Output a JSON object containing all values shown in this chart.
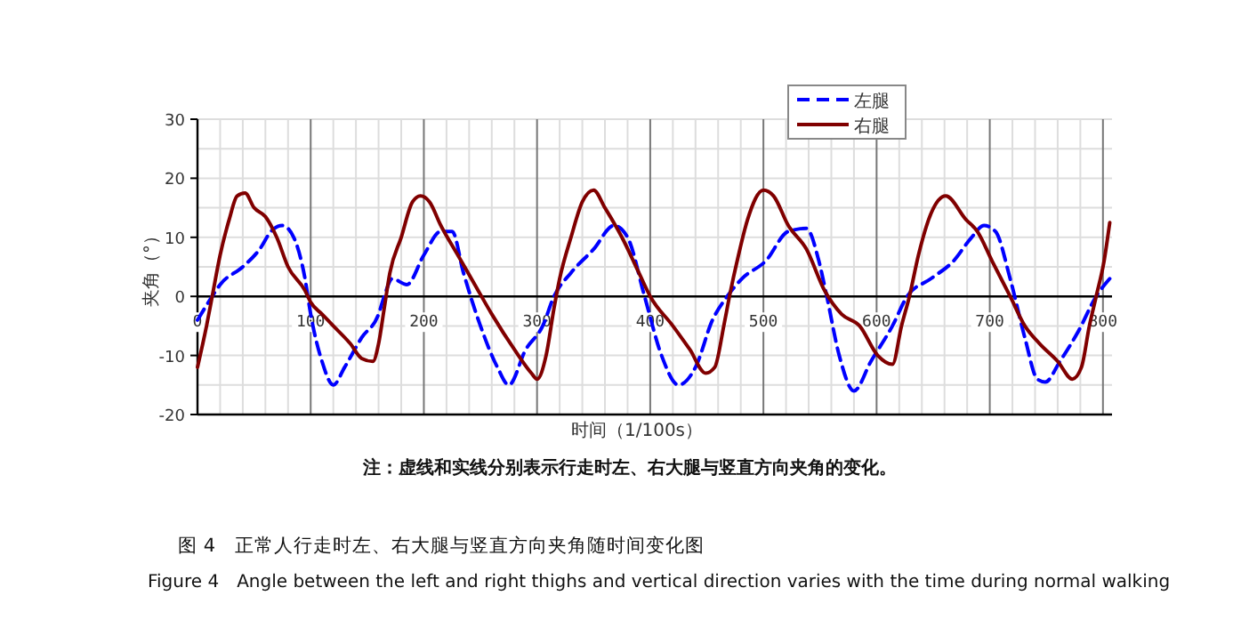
{
  "chart_data": {
    "type": "line",
    "xlabel": "时间（1/100s）",
    "ylabel": "夹角（°）",
    "annotations": [
      "注：虚线和实线分别表示行走时左、右大腿与竖直方向夹角的变化。",
      "图 4　正常人行走时左、右大腿与竖直方向夹角随时间变化图",
      "Figure 4　Angle between the left and right thighs and vertical direction varies with the time during normal walking"
    ],
    "xlim": [
      0,
      808
    ],
    "ylim": [
      -20,
      30
    ],
    "xticks": [
      0,
      {
        "value": 20,
        "label": null
      },
      {
        "value": 40,
        "label": null
      },
      {
        "value": 60,
        "label": null
      },
      {
        "value": 80,
        "label": null
      },
      100,
      {
        "value": 120,
        "label": null
      },
      {
        "value": 140,
        "label": null
      },
      {
        "value": 160,
        "label": null
      },
      {
        "value": 180,
        "label": null
      },
      200,
      {
        "value": 220,
        "label": null
      },
      {
        "value": 240,
        "label": null
      },
      {
        "value": 260,
        "label": null
      },
      {
        "value": 280,
        "label": null
      },
      300,
      {
        "value": 320,
        "label": null
      },
      {
        "value": 340,
        "label": null
      },
      {
        "value": 360,
        "label": null
      },
      {
        "value": 380,
        "label": null
      },
      400,
      {
        "value": 420,
        "label": null
      },
      {
        "value": 440,
        "label": null
      },
      {
        "value": 460,
        "label": null
      },
      {
        "value": 480,
        "label": null
      },
      500,
      {
        "value": 520,
        "label": null
      },
      {
        "value": 540,
        "label": null
      },
      {
        "value": 560,
        "label": null
      },
      {
        "value": 580,
        "label": null
      },
      600,
      {
        "value": 620,
        "label": null
      },
      {
        "value": 640,
        "label": null
      },
      {
        "value": 660,
        "label": null
      },
      {
        "value": 680,
        "label": null
      },
      700,
      {
        "value": 720,
        "label": null
      },
      {
        "value": 740,
        "label": null
      },
      {
        "value": 760,
        "label": null
      },
      {
        "value": 780,
        "label": null
      },
      800
    ],
    "yticks": [
      -20,
      {
        "value": -15,
        "label": null
      },
      -10,
      {
        "value": -5,
        "label": null
      },
      0,
      {
        "value": 5,
        "label": null
      },
      10,
      {
        "value": 15,
        "label": null
      },
      20,
      {
        "value": 25,
        "label": null
      },
      30
    ],
    "grid": true,
    "legend": "top right",
    "series": [
      {
        "name": "左腿",
        "color": "#0000ff",
        "line_style": "dashed",
        "x": [
          0,
          13,
          20,
          40,
          55,
          65,
          75,
          85,
          95,
          100,
          110,
          120,
          130,
          145,
          160,
          165,
          172,
          185,
          200,
          215,
          225,
          235,
          250,
          265,
          275,
          290,
          305,
          315,
          330,
          350,
          368,
          380,
          395,
          410,
          425,
          440,
          455,
          468,
          481,
          502,
          522,
          538,
          549,
          556,
          567,
          580,
          595,
          614,
          627,
          648,
          668,
          684,
          695,
          705,
          718,
          731,
          742,
          749,
          762,
          778,
          794,
          806
        ],
        "values": [
          -4,
          0,
          2,
          5,
          8,
          11,
          12,
          10,
          3,
          -3,
          -11,
          -15,
          -12,
          -7,
          -3,
          0,
          3,
          2,
          7,
          11,
          11,
          4,
          -5,
          -12,
          -15,
          -9,
          -5,
          0,
          4,
          8,
          12,
          10,
          0,
          -10,
          -15,
          -12,
          -4,
          0,
          3,
          6,
          11,
          11.5,
          6,
          0,
          -10,
          -16,
          -11,
          -5,
          0,
          3,
          6,
          10,
          12,
          11,
          3,
          -7,
          -14,
          -14.5,
          -11,
          -6,
          0,
          3
        ]
      },
      {
        "name": "右腿",
        "color": "#800000",
        "line_style": "solid",
        "x": [
          0,
          8,
          13,
          20,
          28,
          35,
          42,
          50,
          60,
          70,
          80,
          95,
          100,
          110,
          120,
          135,
          145,
          155,
          160,
          165,
          170,
          180,
          190,
          197,
          205,
          215,
          230,
          245,
          260,
          280,
          295,
          300,
          308,
          315,
          320,
          330,
          340,
          350,
          360,
          375,
          390,
          400,
          420,
          435,
          449,
          457,
          465,
          470,
          478,
          486,
          500,
          509,
          522,
          538,
          554,
          569,
          585,
          601,
          614,
          622,
          629,
          637,
          648,
          661,
          679,
          689,
          702,
          718,
          731,
          744,
          760,
          773,
          781,
          788,
          794,
          801,
          806
        ],
        "values": [
          -12,
          -5,
          0,
          7,
          13,
          17,
          17.5,
          15,
          13.5,
          10,
          5,
          1,
          -1,
          -3,
          -5,
          -8,
          -10.5,
          -11,
          -8,
          -2,
          4,
          10,
          16,
          17,
          16,
          12,
          7,
          2,
          -3,
          -9,
          -13,
          -14,
          -10,
          -2,
          3,
          10,
          16,
          18,
          15,
          10,
          4,
          0,
          -5,
          -9,
          -13,
          -12,
          -5,
          0,
          7,
          13,
          18,
          17,
          12,
          8,
          1,
          -3,
          -5,
          -10,
          -11.5,
          -5,
          0,
          7,
          14,
          17,
          13,
          11,
          6,
          0,
          -5,
          -8,
          -11,
          -14,
          -12,
          -5,
          0,
          6,
          12.5
        ]
      }
    ]
  }
}
